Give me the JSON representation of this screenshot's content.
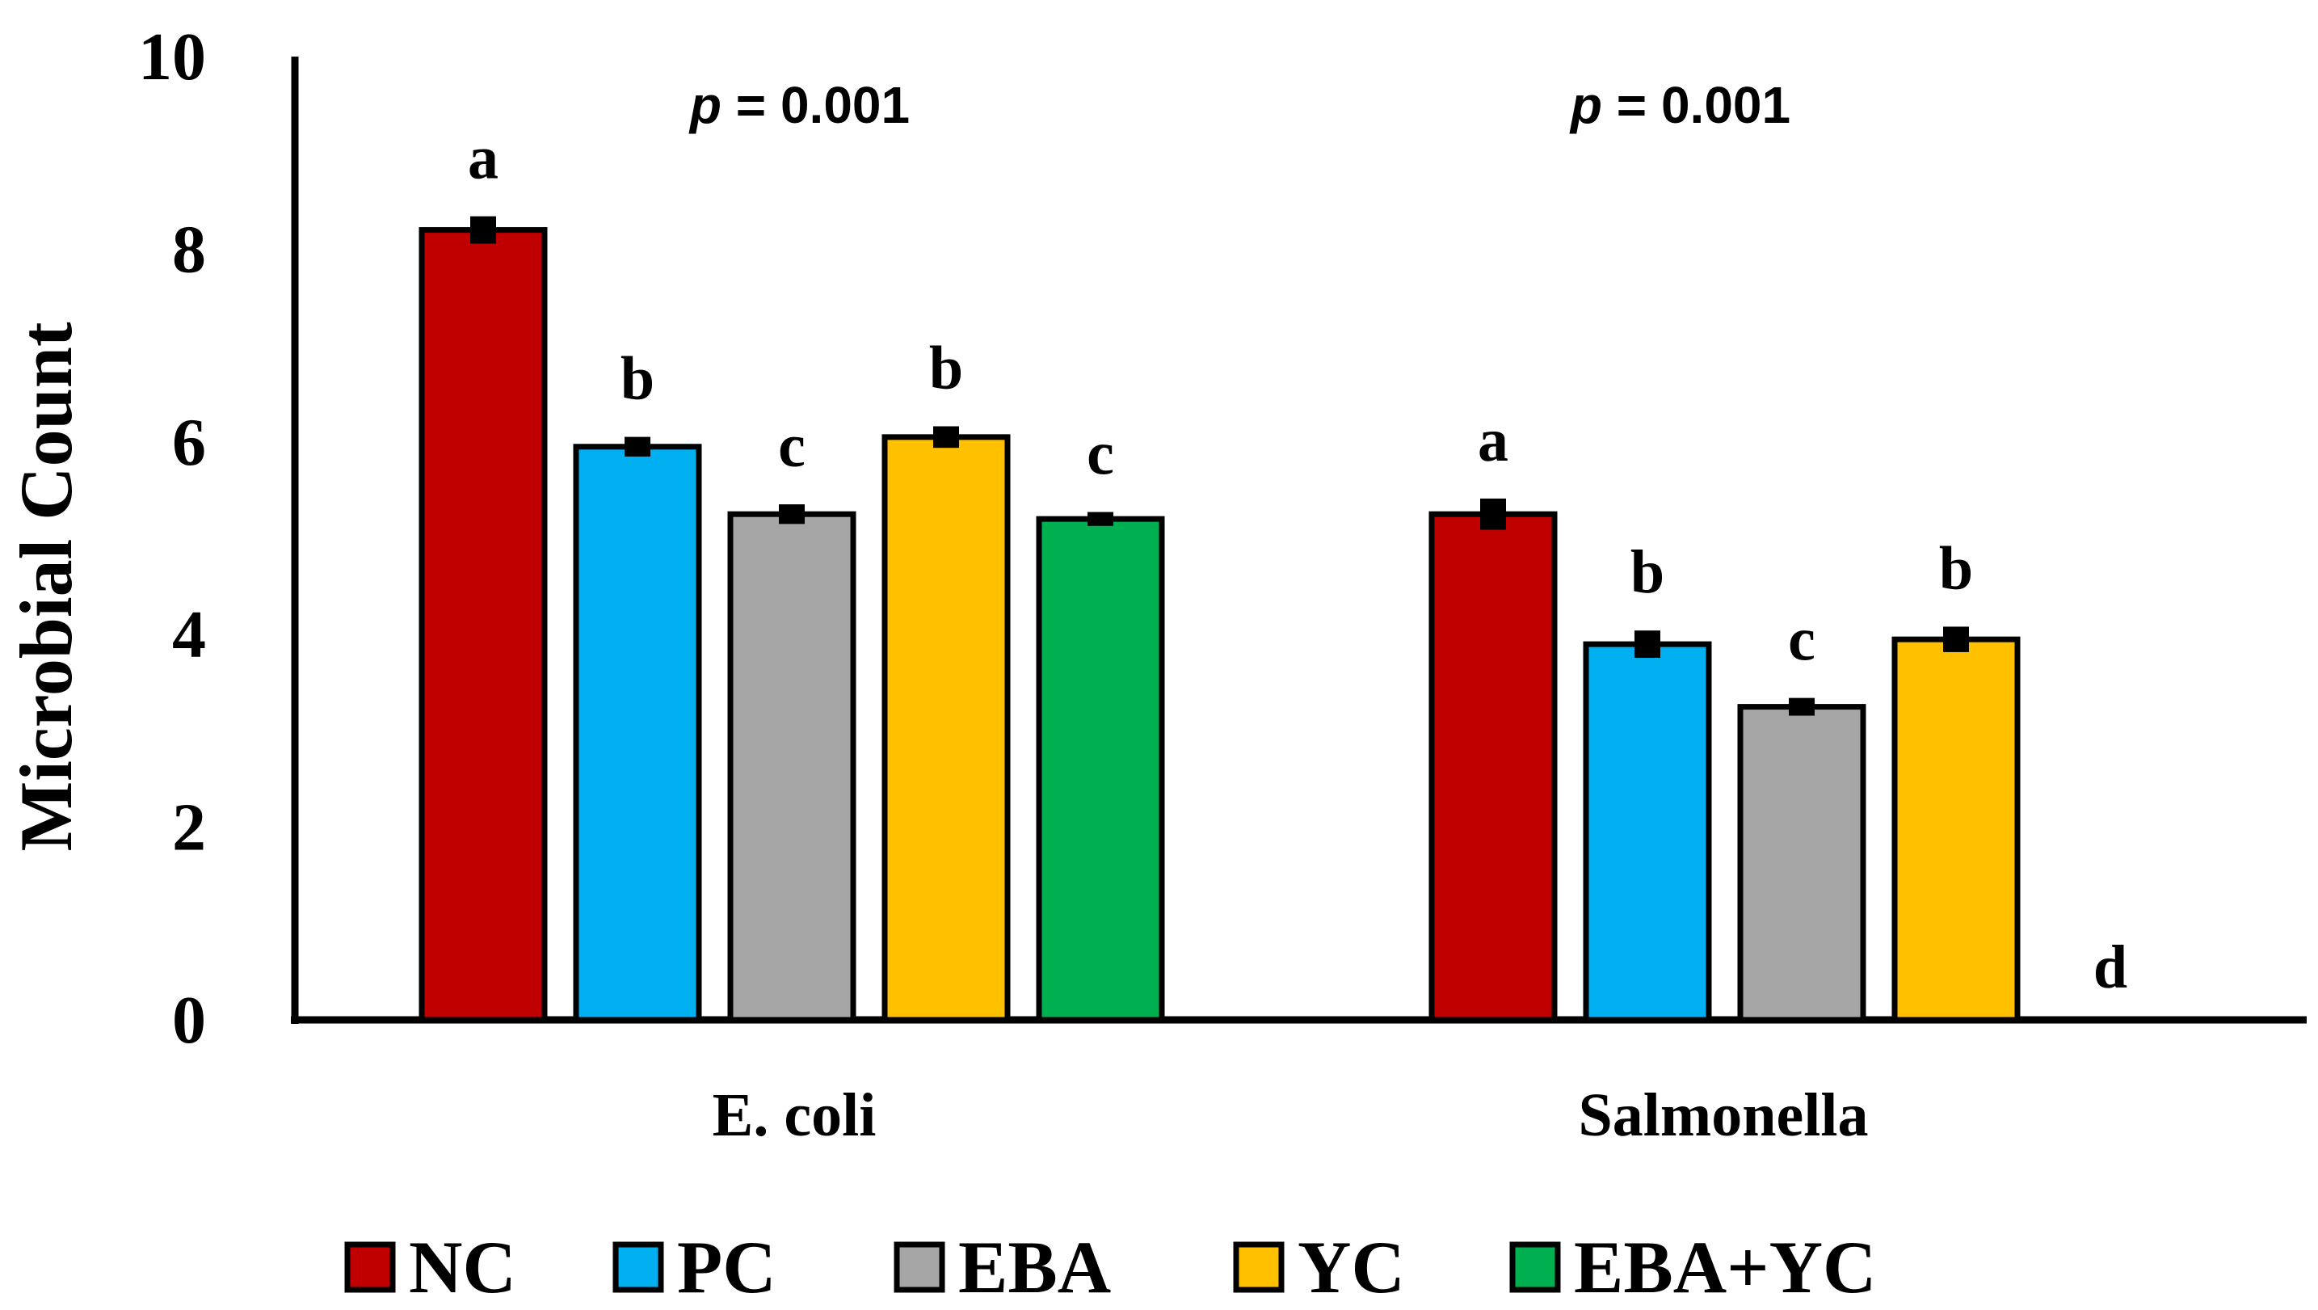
{
  "chart_data": {
    "type": "bar",
    "title": "",
    "xlabel": "",
    "ylabel": "Microbial Count",
    "ylim": [
      0,
      10
    ],
    "yticks": [
      "0",
      "2",
      "4",
      "6",
      "8",
      "10"
    ],
    "grid": false,
    "legend_position": "bottom",
    "categories": [
      "E. coli",
      "Salmonella"
    ],
    "series": [
      {
        "name": "NC",
        "color": "#C00000",
        "values": [
          8.2,
          5.25
        ],
        "errors": [
          0.1,
          0.12
        ],
        "letters": [
          "a",
          "a"
        ]
      },
      {
        "name": "PC",
        "color": "#00B0F0",
        "values": [
          5.95,
          3.9
        ],
        "errors": [
          0.06,
          0.1
        ],
        "letters": [
          "b",
          "b"
        ]
      },
      {
        "name": "EBA",
        "color": "#A6A6A6",
        "values": [
          5.25,
          3.25
        ],
        "errors": [
          0.06,
          0.05
        ],
        "letters": [
          "c",
          "c"
        ]
      },
      {
        "name": "YC",
        "color": "#FFC000",
        "values": [
          6.05,
          3.95
        ],
        "errors": [
          0.07,
          0.09
        ],
        "letters": [
          "b",
          "b"
        ]
      },
      {
        "name": "EBA+YC",
        "color": "#00B050",
        "values": [
          5.2,
          0
        ],
        "errors": [
          0.03,
          0
        ],
        "letters": [
          "c",
          "d"
        ]
      }
    ],
    "annotations": [
      {
        "category": "E. coli",
        "p_symbol": "p",
        "p_text": " = 0.001"
      },
      {
        "category": "Salmonella",
        "p_symbol": "p",
        "p_text": " = 0.001"
      }
    ]
  }
}
